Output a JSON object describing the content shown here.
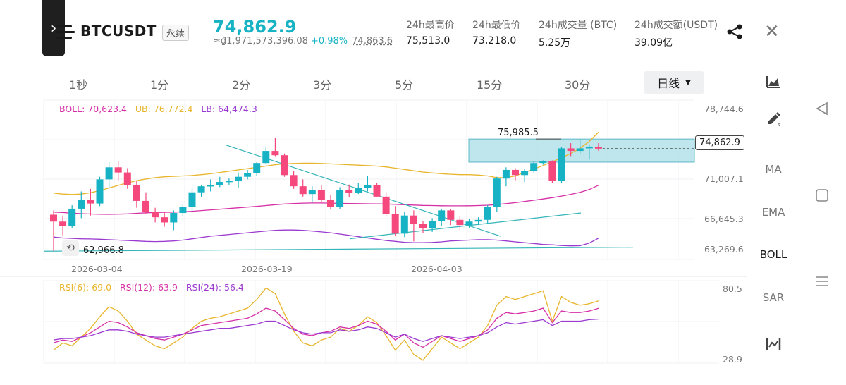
{
  "header": {
    "back_icon": "chevron-right-icon",
    "symbol": "BTCUSDT",
    "badge": "永续",
    "last_price": "74,862.9",
    "cny_value": "≈₫1,971,573,396.08",
    "change_pct": "+0.98%",
    "mark_price": "74,863.6",
    "stats": [
      {
        "label": "24h最高价",
        "value": "75,513.0"
      },
      {
        "label": "24h最低价",
        "value": "73,218.0"
      },
      {
        "label": "24h成交量 (BTC)",
        "value": "5.25万"
      },
      {
        "label": "24h成交额(USDT)",
        "value": "39.09亿"
      }
    ]
  },
  "timeframes": [
    "1秒",
    "1分",
    "2分",
    "3分",
    "5分",
    "15分",
    "30分"
  ],
  "active_timeframe": "日线",
  "side_tools": {
    "top_icons": [
      "chart-type-icon",
      "draw-pen-icon"
    ],
    "indicators": [
      "MA",
      "EMA",
      "BOLL",
      "SAR"
    ],
    "active_indicator": "BOLL",
    "bottom_icon": "fit-range-icon"
  },
  "colors": {
    "up": "#17b3c5",
    "down": "#f5487d",
    "boll_mid": "#d630a6",
    "boll_ub": "#e8b52c",
    "boll_lb": "#9b3ad0",
    "trendline": "#35b5b8",
    "rsi6": "#e8b52c",
    "rsi12": "#d630a6",
    "rsi24": "#9b3ad0"
  },
  "chart_data": [
    {
      "type": "candlestick",
      "title": "",
      "indicator_legend": [
        {
          "label": "BOLL: 70,623.4",
          "color": "#d630a6"
        },
        {
          "label": "UB: 76,772.4",
          "color": "#e8b52c"
        },
        {
          "label": "LB: 64,474.3",
          "color": "#9b3ad0"
        }
      ],
      "y_ticks": [
        "78,744.6",
        "71,007.1",
        "66,645.3",
        "63,269.6"
      ],
      "x_ticks": [
        "2026-03-04",
        "2026-03-19",
        "2026-04-03"
      ],
      "ylim": [
        62000,
        80500
      ],
      "max_label": "75,985.5",
      "min_label": "62,966.8",
      "last_price_tag": "74,862.9",
      "last_price": 74862.9,
      "ohlc": [
        [
          67200,
          67700,
          63000,
          66400
        ],
        [
          66400,
          67100,
          64800,
          65900
        ],
        [
          65900,
          68300,
          65600,
          67900
        ],
        [
          67900,
          69900,
          66800,
          68900
        ],
        [
          68900,
          70200,
          67100,
          68500
        ],
        [
          68500,
          71600,
          68200,
          71300
        ],
        [
          71300,
          73300,
          70300,
          72700
        ],
        [
          72700,
          73400,
          71200,
          72100
        ],
        [
          72100,
          72600,
          70200,
          70600
        ],
        [
          70600,
          71100,
          68000,
          68800
        ],
        [
          68800,
          69800,
          67300,
          67500
        ],
        [
          67500,
          68000,
          66300,
          66900
        ],
        [
          66900,
          67500,
          65800,
          66300
        ],
        [
          66300,
          67700,
          65400,
          67400
        ],
        [
          67400,
          68400,
          67000,
          68100
        ],
        [
          68100,
          70200,
          67400,
          69800
        ],
        [
          69800,
          70600,
          69300,
          70500
        ],
        [
          70500,
          71300,
          69900,
          70600
        ],
        [
          70600,
          71600,
          70400,
          71000
        ],
        [
          71000,
          71400,
          70600,
          71100
        ],
        [
          71100,
          72100,
          70300,
          71600
        ],
        [
          71600,
          72400,
          71300,
          72000
        ],
        [
          72000,
          73300,
          71700,
          73200
        ],
        [
          73200,
          75100,
          73100,
          74600
        ],
        [
          74600,
          76100,
          74000,
          74100
        ],
        [
          74100,
          74300,
          71600,
          71800
        ],
        [
          71800,
          72300,
          70200,
          70500
        ],
        [
          70500,
          71300,
          69300,
          69600
        ],
        [
          69600,
          70500,
          68600,
          70100
        ],
        [
          70100,
          70600,
          68600,
          68900
        ],
        [
          68900,
          69500,
          67800,
          68100
        ],
        [
          68100,
          70400,
          67900,
          70100
        ],
        [
          70100,
          70700,
          69200,
          69700
        ],
        [
          69700,
          70900,
          69600,
          70300
        ],
        [
          70300,
          71700,
          69900,
          70600
        ],
        [
          70600,
          70900,
          69300,
          69300
        ],
        [
          69300,
          69800,
          67000,
          67300
        ],
        [
          67300,
          68200,
          64700,
          65000
        ],
        [
          65000,
          67500,
          64600,
          67100
        ],
        [
          67100,
          67700,
          64100,
          66100
        ],
        [
          66100,
          66500,
          65100,
          65600
        ],
        [
          65600,
          66800,
          65200,
          66500
        ],
        [
          66500,
          67900,
          65900,
          67700
        ],
        [
          67700,
          67900,
          66000,
          66600
        ],
        [
          66600,
          67000,
          65400,
          66000
        ],
        [
          66000,
          66700,
          65700,
          66400
        ],
        [
          66400,
          66900,
          66000,
          66600
        ],
        [
          66600,
          68300,
          66200,
          68100
        ],
        [
          68100,
          71600,
          67500,
          71400
        ],
        [
          71400,
          72700,
          70500,
          72400
        ],
        [
          72400,
          72600,
          71200,
          71800
        ],
        [
          71800,
          72500,
          71000,
          72300
        ],
        [
          72300,
          73400,
          72100,
          73200
        ],
        [
          73200,
          73500,
          73000,
          73400
        ],
        [
          73400,
          73500,
          70900,
          71100
        ],
        [
          71100,
          75100,
          70900,
          74900
        ],
        [
          74900,
          75500,
          74000,
          74600
        ],
        [
          74600,
          75986,
          74300,
          74900
        ],
        [
          74900,
          75300,
          73600,
          75100
        ],
        [
          75100,
          75513,
          74600,
          74862.9
        ]
      ],
      "boll_mid": [
        67500,
        67450,
        67380,
        67320,
        67280,
        67250,
        67240,
        67260,
        67300,
        67360,
        67420,
        67460,
        67480,
        67500,
        67540,
        67600,
        67680,
        67760,
        67840,
        67920,
        68000,
        68080,
        68160,
        68260,
        68360,
        68440,
        68500,
        68540,
        68560,
        68560,
        68540,
        68520,
        68500,
        68480,
        68470,
        68460,
        68440,
        68400,
        68360,
        68320,
        68280,
        68260,
        68240,
        68230,
        68230,
        68240,
        68260,
        68300,
        68380,
        68480,
        68600,
        68740,
        68880,
        69020,
        69180,
        69360,
        69560,
        69800,
        70120,
        70623.4
      ],
      "boll_ub": [
        69700,
        69600,
        69550,
        69600,
        69750,
        70000,
        70300,
        70600,
        70900,
        71150,
        71350,
        71500,
        71600,
        71650,
        71700,
        71750,
        71850,
        71950,
        72100,
        72250,
        72400,
        72550,
        72700,
        72850,
        73000,
        73100,
        73150,
        73180,
        73180,
        73150,
        73100,
        73050,
        73000,
        72950,
        72900,
        72850,
        72750,
        72600,
        72450,
        72300,
        72150,
        72050,
        71950,
        71900,
        71850,
        71850,
        71800,
        71700,
        71500,
        71500,
        71700,
        72100,
        72500,
        72900,
        73350,
        73800,
        74300,
        74900,
        75700,
        76772.4
      ],
      "boll_lb": [
        64600,
        64500,
        64450,
        64400,
        64380,
        64350,
        64300,
        64250,
        64200,
        64150,
        64100,
        64080,
        64100,
        64150,
        64250,
        64400,
        64550,
        64700,
        64800,
        64900,
        65000,
        65100,
        65200,
        65300,
        65380,
        65420,
        65420,
        65380,
        65300,
        65200,
        65100,
        64950,
        64800,
        64650,
        64500,
        64350,
        64200,
        64100,
        64000,
        63950,
        63950,
        63980,
        64050,
        64150,
        64200,
        64250,
        64300,
        64300,
        64250,
        64150,
        64050,
        63950,
        63850,
        63750,
        63700,
        63620,
        63580,
        63600,
        63900,
        64474.3
      ]
    },
    {
      "type": "line",
      "title": "",
      "series": [
        {
          "name": "RSI(6): 69.0",
          "color": "#e8b52c",
          "values": [
            35,
            40,
            38,
            44,
            50,
            58,
            65,
            62,
            55,
            46,
            42,
            38,
            36,
            40,
            44,
            50,
            55,
            57,
            58,
            60,
            62,
            64,
            70,
            78,
            74,
            60,
            48,
            40,
            38,
            42,
            44,
            50,
            48,
            52,
            58,
            54,
            45,
            35,
            42,
            32,
            28,
            36,
            44,
            40,
            36,
            40,
            44,
            52,
            66,
            72,
            70,
            72,
            74,
            76,
            55,
            72,
            68,
            66,
            67,
            69.0
          ]
        },
        {
          "name": "RSI(12): 63.9",
          "color": "#d630a6",
          "values": [
            40,
            42,
            41,
            44,
            47,
            51,
            55,
            54,
            51,
            47,
            45,
            43,
            42,
            44,
            46,
            49,
            52,
            53,
            54,
            55,
            56,
            57,
            60,
            64,
            62,
            56,
            50,
            46,
            45,
            47,
            48,
            51,
            50,
            52,
            55,
            53,
            48,
            42,
            46,
            40,
            37,
            41,
            45,
            43,
            41,
            43,
            45,
            49,
            57,
            61,
            60,
            61,
            62,
            64,
            54,
            62,
            61,
            61,
            62,
            63.9
          ]
        },
        {
          "name": "RSI(24): 56.4",
          "color": "#9b3ad0",
          "values": [
            42,
            43,
            43,
            44,
            45,
            47,
            49,
            49,
            48,
            46,
            45,
            44,
            44,
            45,
            46,
            47,
            48,
            49,
            50,
            50,
            51,
            52,
            53,
            55,
            55,
            52,
            49,
            47,
            46,
            47,
            47,
            49,
            48,
            49,
            51,
            50,
            47,
            44,
            46,
            43,
            41,
            43,
            45,
            44,
            43,
            44,
            45,
            47,
            51,
            54,
            53,
            54,
            55,
            56,
            52,
            55,
            55,
            55,
            56,
            56.4
          ]
        }
      ],
      "y_ticks": [
        "80.5",
        "28.9"
      ],
      "ylim": [
        26,
        83
      ]
    }
  ]
}
